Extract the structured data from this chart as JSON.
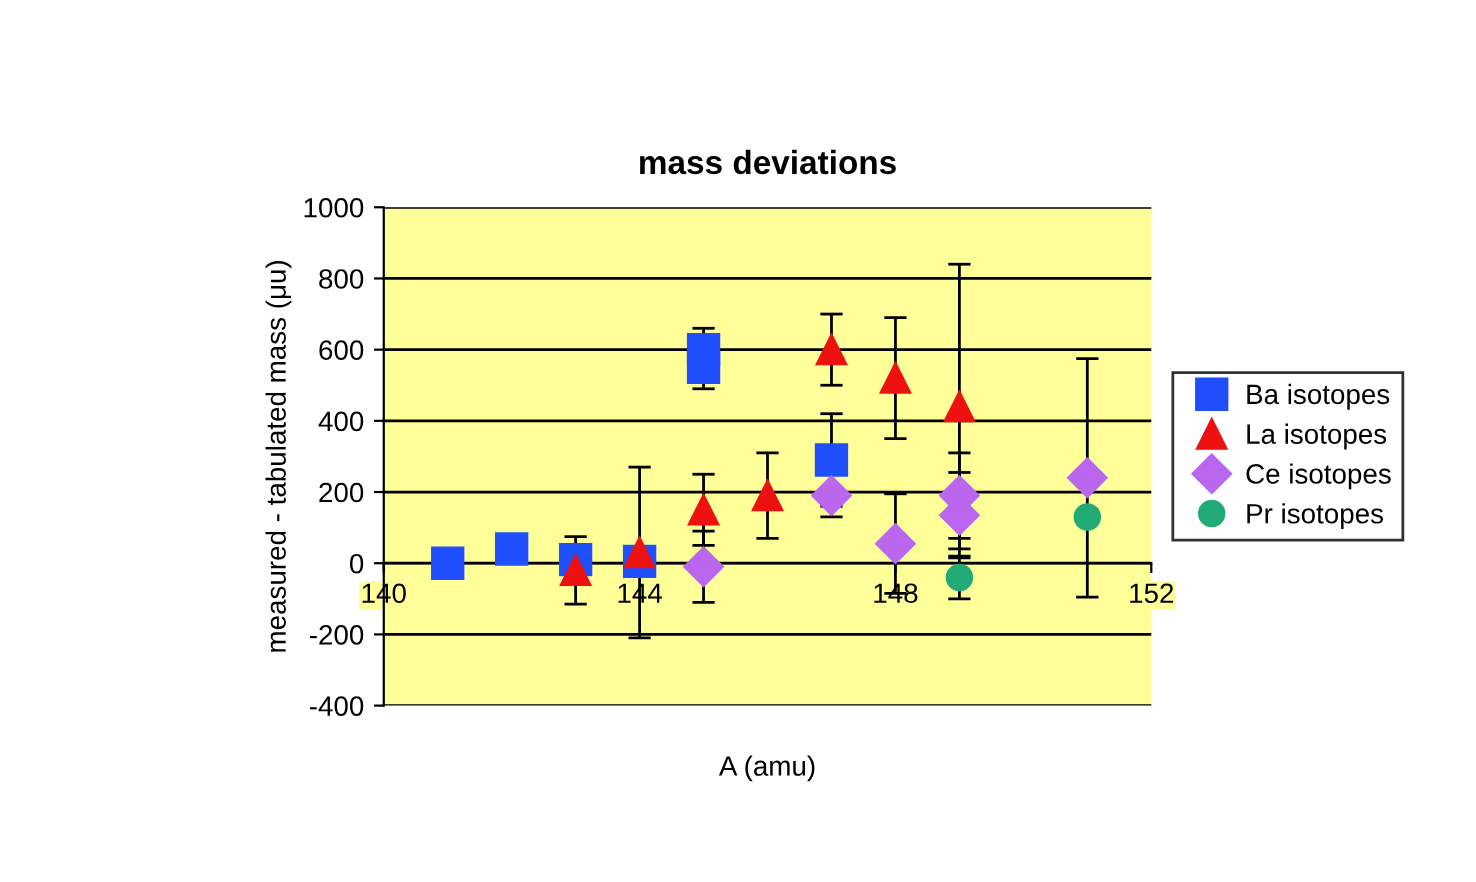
{
  "chart_data": {
    "type": "scatter",
    "title": "mass deviations",
    "xlabel": "A (amu)",
    "ylabel": "measured - tabulated mass (μu)",
    "xlim": [
      140,
      152
    ],
    "xticks": [
      140,
      144,
      148,
      152
    ],
    "ylim": [
      -400,
      1000
    ],
    "yticks": [
      -400,
      -200,
      0,
      200,
      400,
      600,
      800,
      1000
    ],
    "grid": "y",
    "legend": "right",
    "series": [
      {
        "name": "Ba isotopes",
        "color": "#1f4fff",
        "marker": "square",
        "x": [
          141,
          142,
          143,
          144,
          145,
          145,
          147
        ],
        "values": [
          0,
          40,
          10,
          5,
          600,
          550,
          290
        ],
        "errors": [
          null,
          null,
          null,
          null,
          60,
          60,
          130
        ]
      },
      {
        "name": "La isotopes",
        "color": "#ee1111",
        "marker": "triangle",
        "x": [
          143,
          144,
          145,
          146,
          147,
          148,
          149
        ],
        "values": [
          -20,
          30,
          150,
          190,
          600,
          520,
          440
        ],
        "errors": [
          95,
          240,
          100,
          120,
          100,
          170,
          400
        ]
      },
      {
        "name": "Ce isotopes",
        "color": "#bb66ee",
        "marker": "diamond",
        "x": [
          145,
          147,
          148,
          149,
          149,
          151
        ],
        "values": [
          -10,
          190,
          55,
          135,
          190,
          240
        ],
        "errors": [
          100,
          60,
          140,
          120,
          120,
          335
        ]
      },
      {
        "name": "Pr isotopes",
        "color": "#22aa77",
        "marker": "circle",
        "x": [
          149,
          151
        ],
        "values": [
          -40,
          130
        ],
        "errors": [
          60,
          null
        ]
      }
    ]
  }
}
